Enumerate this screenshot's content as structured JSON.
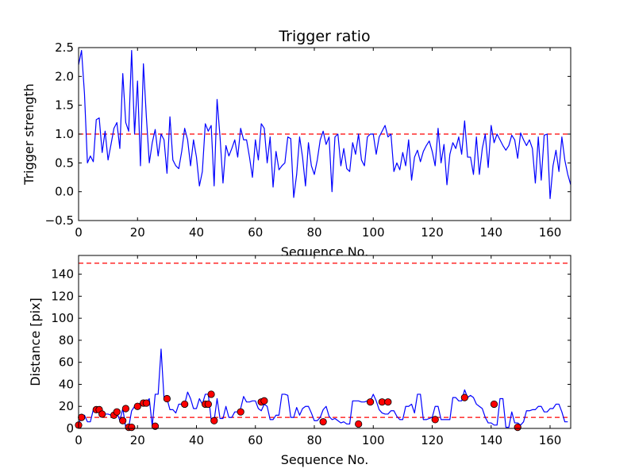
{
  "chart_data": [
    {
      "type": "line",
      "title": "Trigger ratio",
      "xlabel": "Sequence No.",
      "ylabel": "Trigger strength",
      "xlim": [
        0,
        167
      ],
      "ylim": [
        -0.5,
        2.5
      ],
      "xticks": [
        0,
        20,
        40,
        60,
        80,
        100,
        120,
        140,
        160
      ],
      "xtick_labels": [
        "0",
        "20",
        "40",
        "60",
        "80",
        "100",
        "120",
        "140",
        "160"
      ],
      "yticks": [
        -0.5,
        0.0,
        0.5,
        1.0,
        1.5,
        2.0,
        2.5
      ],
      "ytick_labels": [
        "−0.5",
        "0.0",
        "0.5",
        "1.0",
        "1.5",
        "2.0",
        "2.5"
      ],
      "threshold_lines": [
        {
          "y": 1.0,
          "color": "#ff0000",
          "style": "dashed"
        }
      ],
      "series": [
        {
          "name": "trigger strength",
          "color": "#0000ff",
          "x_start": 0,
          "x_step": 1,
          "values": [
            2.2,
            2.45,
            1.7,
            0.5,
            0.62,
            0.52,
            1.25,
            1.28,
            0.68,
            1.05,
            0.55,
            0.82,
            1.1,
            1.2,
            0.75,
            2.05,
            1.2,
            1.05,
            2.45,
            1.0,
            1.92,
            0.45,
            2.22,
            1.3,
            0.5,
            0.85,
            1.08,
            0.62,
            1.0,
            0.9,
            0.32,
            1.3,
            0.55,
            0.45,
            0.4,
            0.7,
            1.1,
            0.9,
            0.45,
            0.9,
            0.6,
            0.1,
            0.35,
            1.18,
            1.05,
            1.15,
            0.1,
            1.6,
            0.95,
            0.15,
            0.8,
            0.62,
            0.75,
            0.9,
            0.6,
            1.1,
            0.9,
            0.9,
            0.6,
            0.25,
            0.9,
            0.55,
            1.18,
            1.1,
            0.5,
            0.95,
            0.08,
            0.7,
            0.38,
            0.45,
            0.5,
            0.95,
            0.92,
            -0.1,
            0.3,
            0.95,
            0.6,
            0.1,
            0.85,
            0.45,
            0.3,
            0.55,
            0.9,
            1.05,
            0.82,
            0.95,
            0.0,
            0.95,
            1.0,
            0.45,
            0.75,
            0.4,
            0.35,
            0.85,
            0.65,
            1.0,
            0.55,
            0.45,
            0.95,
            1.0,
            1.0,
            0.65,
            0.95,
            1.05,
            1.15,
            0.95,
            1.0,
            0.35,
            0.5,
            0.38,
            0.68,
            0.45,
            0.9,
            0.2,
            0.6,
            0.72,
            0.52,
            0.7,
            0.8,
            0.88,
            0.7,
            0.45,
            1.1,
            0.5,
            0.82,
            0.12,
            0.65,
            0.85,
            0.75,
            0.95,
            0.65,
            1.23,
            0.6,
            0.6,
            0.3,
            0.95,
            0.3,
            0.75,
            1.0,
            0.42,
            1.15,
            0.85,
            1.0,
            0.9,
            0.8,
            0.72,
            0.8,
            0.98,
            0.9,
            0.58,
            1.02,
            0.9,
            0.8,
            0.9,
            0.75,
            0.15,
            0.95,
            0.2,
            0.98,
            1.0,
            -0.12,
            0.45,
            0.72,
            0.35,
            0.95,
            0.55,
            0.3,
            0.12
          ]
        }
      ]
    },
    {
      "type": "line",
      "title": "",
      "xlabel": "Sequence No.",
      "ylabel": "Distance [pix]",
      "xlim": [
        0,
        167
      ],
      "ylim": [
        0,
        157
      ],
      "xticks": [
        0,
        20,
        40,
        60,
        80,
        100,
        120,
        140,
        160
      ],
      "xtick_labels": [
        "0",
        "20",
        "40",
        "60",
        "80",
        "100",
        "120",
        "140",
        "160"
      ],
      "yticks": [
        0,
        20,
        40,
        60,
        80,
        100,
        120,
        140
      ],
      "ytick_labels": [
        "0",
        "20",
        "40",
        "60",
        "80",
        "100",
        "120",
        "140"
      ],
      "threshold_lines": [
        {
          "y": 150,
          "color": "#ff0000",
          "style": "dashed"
        },
        {
          "y": 10,
          "color": "#ff0000",
          "style": "dashed"
        }
      ],
      "series": [
        {
          "name": "distance",
          "color": "#0000ff",
          "x_start": 0,
          "x_step": 1,
          "values": [
            4,
            10,
            12,
            6,
            6,
            17,
            17,
            14,
            13,
            13,
            13,
            12,
            15,
            15,
            7,
            18,
            1,
            1,
            16,
            20,
            21,
            23,
            23,
            24,
            27,
            2,
            31,
            31,
            72,
            27,
            27,
            17,
            17,
            14,
            22,
            22,
            22,
            33,
            27,
            18,
            18,
            27,
            22,
            31,
            31,
            8,
            7,
            27,
            9,
            9,
            20,
            10,
            10,
            15,
            15,
            18,
            29,
            24,
            24,
            25,
            25,
            18,
            16,
            22,
            20,
            8,
            8,
            12,
            12,
            31,
            31,
            30,
            10,
            10,
            19,
            12,
            18,
            20,
            20,
            14,
            7,
            7,
            10,
            17,
            20,
            11,
            8,
            9,
            7,
            5,
            6,
            4,
            4,
            25,
            25,
            25,
            24,
            24,
            25,
            25,
            31,
            25,
            17,
            14,
            13,
            13,
            16,
            16,
            11,
            8,
            8,
            20,
            20,
            22,
            14,
            31,
            31,
            8,
            8,
            9,
            10,
            20,
            20,
            8,
            8,
            8,
            8,
            28,
            28,
            25,
            25,
            35,
            28,
            30,
            28,
            22,
            20,
            18,
            10,
            5,
            5,
            3,
            3,
            27,
            27,
            1,
            1,
            15,
            5,
            5,
            3,
            6,
            16,
            16,
            17,
            17,
            20,
            20,
            15,
            15,
            18,
            18,
            22,
            22,
            15,
            6,
            6
          ]
        },
        {
          "name": "markers",
          "color": "#ff0000",
          "marker": "circle",
          "points": [
            [
              0,
              3
            ],
            [
              1,
              10
            ],
            [
              6,
              17
            ],
            [
              7,
              17
            ],
            [
              8,
              13
            ],
            [
              12,
              12
            ],
            [
              13,
              15
            ],
            [
              15,
              7
            ],
            [
              16,
              18
            ],
            [
              17,
              1
            ],
            [
              18,
              1
            ],
            [
              20,
              20
            ],
            [
              22,
              23
            ],
            [
              23,
              23
            ],
            [
              26,
              2
            ],
            [
              30,
              27
            ],
            [
              36,
              22
            ],
            [
              43,
              22
            ],
            [
              44,
              22
            ],
            [
              45,
              31
            ],
            [
              46,
              7
            ],
            [
              55,
              15
            ],
            [
              62,
              24
            ],
            [
              63,
              25
            ],
            [
              83,
              6
            ],
            [
              95,
              4
            ],
            [
              99,
              24
            ],
            [
              103,
              24
            ],
            [
              105,
              24
            ],
            [
              121,
              8
            ],
            [
              131,
              28
            ],
            [
              141,
              22
            ],
            [
              149,
              1
            ]
          ]
        }
      ]
    }
  ]
}
